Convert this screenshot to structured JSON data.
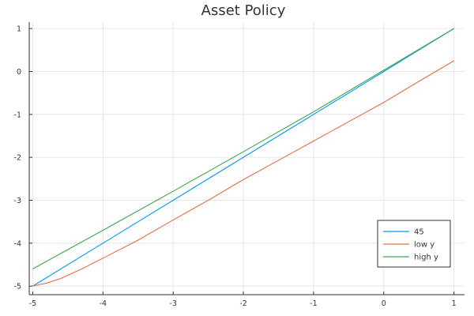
{
  "chart_data": {
    "type": "line",
    "title": "Asset Policy",
    "xlabel": "",
    "ylabel": "",
    "xlim": [
      -5.05,
      1.15
    ],
    "ylim": [
      -5.2,
      1.15
    ],
    "xticks": [
      -5,
      -4,
      -3,
      -2,
      -1,
      0,
      1
    ],
    "yticks": [
      -5,
      -4,
      -3,
      -2,
      -1,
      0,
      1
    ],
    "xtick_labels": [
      "-5",
      "-4",
      "-3",
      "-2",
      "-1",
      "0",
      "1"
    ],
    "ytick_labels": [
      "-5",
      "-4",
      "-3",
      "-2",
      "-1",
      "0",
      "1"
    ],
    "grid": true,
    "legend_position": "bottom-right",
    "series": [
      {
        "name": "45",
        "color": "#009AFA",
        "x": [
          -5,
          -4,
          -3,
          -2,
          -1,
          0,
          1
        ],
        "y": [
          -5,
          -4,
          -3,
          -2,
          -1,
          0,
          1
        ]
      },
      {
        "name": "low y",
        "color": "#E26F46",
        "x": [
          -5,
          -4.8,
          -4.6,
          -4.3,
          -4,
          -3.5,
          -3,
          -2.5,
          -2,
          -1.5,
          -1,
          -0.5,
          0,
          0.5,
          1
        ],
        "y": [
          -5,
          -4.93,
          -4.82,
          -4.6,
          -4.35,
          -3.93,
          -3.46,
          -3.0,
          -2.52,
          -2.07,
          -1.62,
          -1.17,
          -0.72,
          -0.23,
          0.25
        ]
      },
      {
        "name": "high y",
        "color": "#3DA44D",
        "x": [
          -5,
          -4,
          -3,
          -2,
          -1,
          0,
          1
        ],
        "y": [
          -4.6,
          -3.7,
          -2.79,
          -1.87,
          -0.94,
          0.03,
          1
        ]
      }
    ]
  }
}
